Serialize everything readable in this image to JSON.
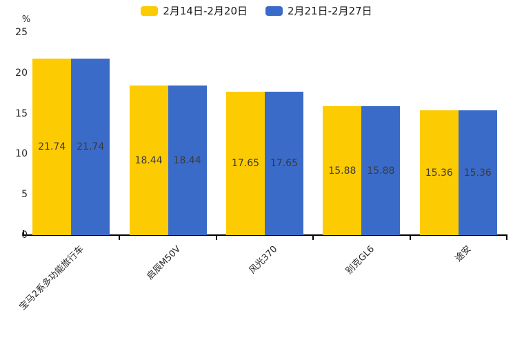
{
  "legend": {
    "items": [
      {
        "label": "2月14日-2月20日",
        "color": "#FDCB02"
      },
      {
        "label": "2月21日-2月27日",
        "color": "#3B6BC9"
      }
    ]
  },
  "chart_data": {
    "type": "bar",
    "categories": [
      "宝马2系多功能旅行车",
      "启辰M50V",
      "风光370",
      "别克GL6",
      "途安"
    ],
    "series": [
      {
        "name": "2月14日-2月20日",
        "color": "#FDCB02",
        "values": [
          21.74,
          18.44,
          17.65,
          15.88,
          15.36
        ]
      },
      {
        "name": "2月21日-2月27日",
        "color": "#3B6BC9",
        "values": [
          21.74,
          18.44,
          17.65,
          15.88,
          15.36
        ]
      }
    ],
    "value_labels": [
      "21.74",
      "18.44",
      "17.65",
      "15.88",
      "15.36"
    ],
    "title": "",
    "xlabel": "",
    "ylabel": "%",
    "ylim": [
      0,
      25
    ],
    "yticks": [
      0,
      5,
      10,
      15,
      20,
      25
    ],
    "grid": false,
    "legend_position": "top-center",
    "xtick_rotation": 45,
    "value_label_position": "center-of-bar",
    "axis_color": "#000000",
    "text_color": "#262626"
  }
}
